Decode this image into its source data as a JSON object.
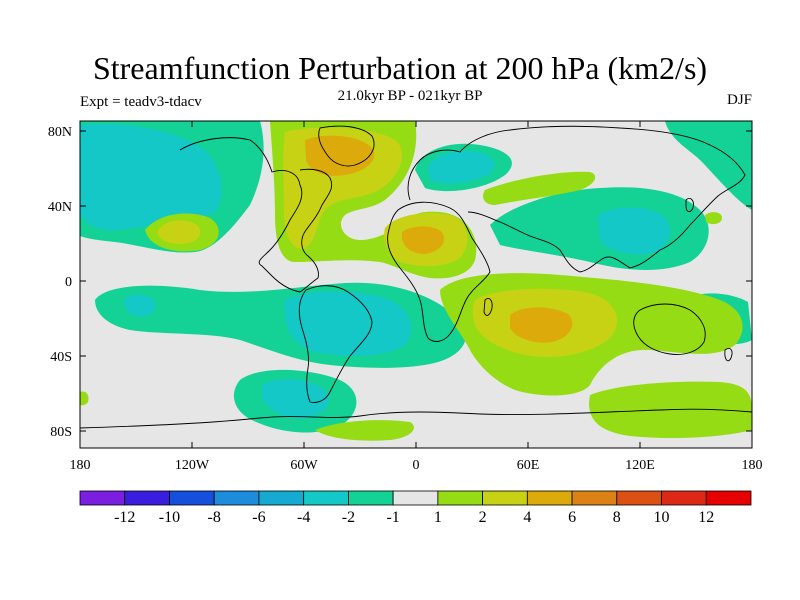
{
  "title": "Streamfunction Perturbation at 200 hPa (km2/s)",
  "subtitle": "21.0kyr BP - 021kyr BP",
  "expt": "Expt = teadv3-tdacv",
  "season": "DJF",
  "lat_labels": [
    "80N",
    "40N",
    "0",
    "40S",
    "80S"
  ],
  "lon_labels": [
    "180",
    "120W",
    "60W",
    "0",
    "60E",
    "120E",
    "180"
  ],
  "colorbar": {
    "labels": [
      "-12",
      "-10",
      "-8",
      "-6",
      "-4",
      "-2",
      "-1",
      "1",
      "2",
      "4",
      "6",
      "8",
      "10",
      "12"
    ],
    "colors": [
      "#7a1ee0",
      "#3a1ee0",
      "#1450dc",
      "#1e8cdc",
      "#14aad2",
      "#14c8c8",
      "#14d296",
      "#e6e6e6",
      "#96dc14",
      "#c8d214",
      "#dcaa0a",
      "#dc8214",
      "#dc5014",
      "#dc2814",
      "#e60000"
    ]
  },
  "palette": {
    "neutral": "#e6e6e6",
    "neg1": "#14d296",
    "neg2": "#14c8c8",
    "neg3": "#14aad2",
    "pos1": "#96dc14",
    "pos2": "#c8d214",
    "pos3": "#dcaa0a"
  }
}
